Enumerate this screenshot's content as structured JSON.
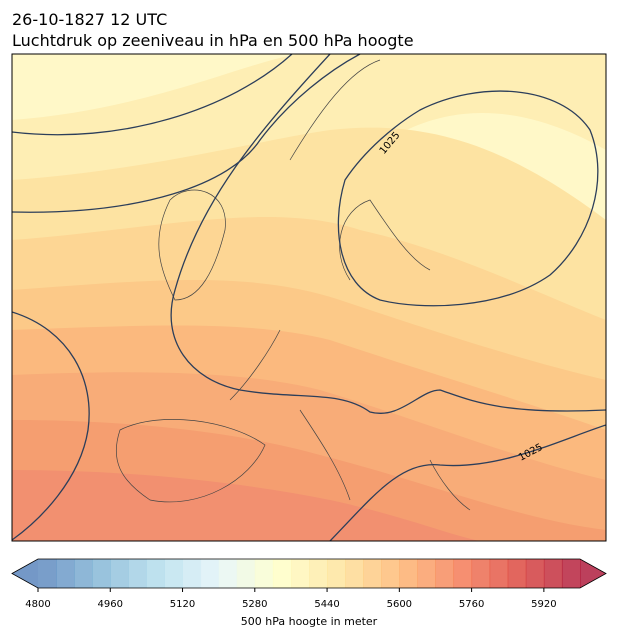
{
  "header": {
    "title": "26-10-1827 12 UTC",
    "subtitle": "Luchtdruk op zeeniveau in hPa en 500 hPa hoogte"
  },
  "map": {
    "contour_labels": [
      "1025",
      "1025"
    ]
  },
  "colorbar": {
    "label": "500 hPa hoogte in meter",
    "range": [
      4800,
      6000
    ],
    "step": 40,
    "ticks": [
      4800,
      4960,
      5120,
      5280,
      5440,
      5600,
      5760,
      5920
    ]
  }
}
